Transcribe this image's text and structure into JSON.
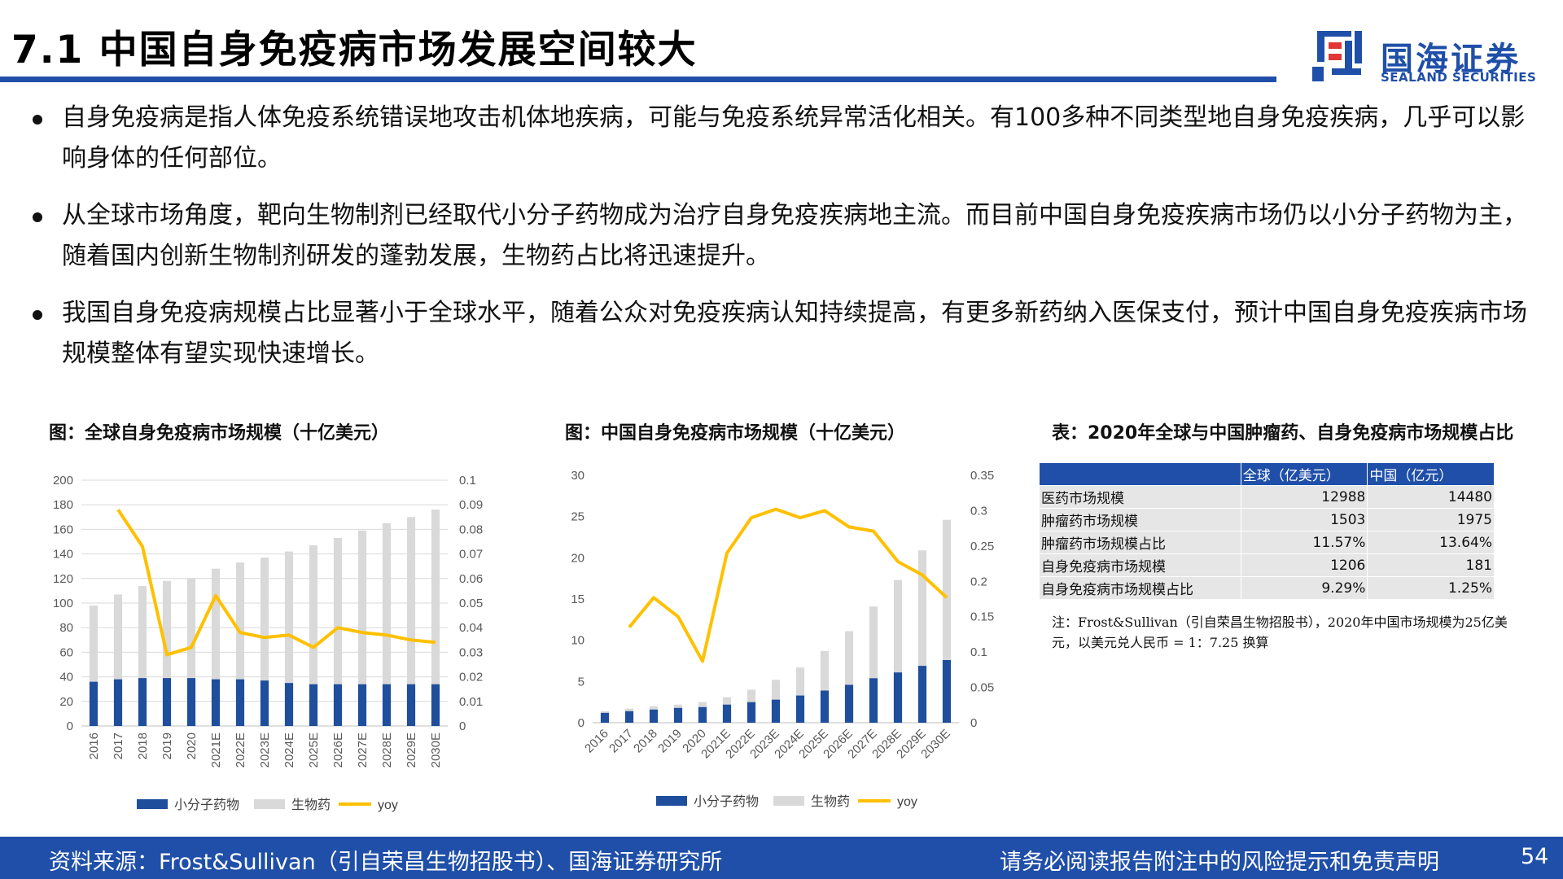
{
  "header": {
    "title": "7.1 中国自身免疫病市场发展空间较大",
    "logo_cn": "国海证券",
    "logo_en": "SEALAND SECURITIES"
  },
  "bullets": [
    "自身免疫病是指人体免疫系统错误地攻击机体地疾病，可能与免疫系统异常活化相关。有100多种不同类型地自身免疫疾病，几乎可以影响身体的任何部位。",
    "从全球市场角度，靶向生物制剂已经取代小分子药物成为治疗自身免疫疾病地主流。而目前中国自身免疫疾病市场仍以小分子药物为主，随着国内创新生物制剂研发的蓬勃发展，生物药占比将迅速提升。",
    "我国自身免疫病规模占比显著小于全球水平，随着公众对免疫疾病认知持续提高，有更多新药纳入医保支付，预计中国自身免疫疾病市场规模整体有望实现快速增长。"
  ],
  "colors": {
    "brand": "#1f4fa8",
    "small_molecule": "#1f4e9c",
    "biologic": "#d9d9d9",
    "yoy": "#ffc000"
  },
  "chart_data": [
    {
      "type": "bar",
      "stacked": true,
      "title": "图：全球自身免疫病市场规模（十亿美元）",
      "categories": [
        "2016",
        "2017",
        "2018",
        "2019",
        "2020",
        "2021E",
        "2022E",
        "2023E",
        "2024E",
        "2025E",
        "2026E",
        "2027E",
        "2028E",
        "2029E",
        "2030E"
      ],
      "series": [
        {
          "name": "小分子药物",
          "axis": "left",
          "values": [
            36,
            38,
            39,
            39,
            39,
            38,
            38,
            37,
            35,
            34,
            34,
            34,
            34,
            34,
            34
          ]
        },
        {
          "name": "生物药",
          "axis": "left",
          "values": [
            62,
            69,
            75,
            79,
            81,
            90,
            95,
            100,
            107,
            113,
            119,
            125,
            131,
            136,
            142
          ]
        },
        {
          "name": "yoy",
          "type": "line",
          "axis": "right",
          "values": [
            null,
            0.088,
            0.073,
            0.029,
            0.032,
            0.053,
            0.038,
            0.036,
            0.037,
            0.032,
            0.04,
            0.038,
            0.037,
            0.035,
            0.034
          ]
        }
      ],
      "ylim": [
        0,
        200
      ],
      "yticks": [
        0,
        20,
        40,
        60,
        80,
        100,
        120,
        140,
        160,
        180,
        200
      ],
      "y2lim": [
        0,
        0.1
      ],
      "y2ticks": [
        "0",
        "0.01",
        "0.02",
        "0.03",
        "0.04",
        "0.05",
        "0.06",
        "0.07",
        "0.08",
        "0.09",
        "0.1"
      ],
      "legend": [
        "小分子药物",
        "生物药",
        "yoy"
      ],
      "legend_position": "bottom",
      "grid": true
    },
    {
      "type": "bar",
      "stacked": true,
      "title": "图：中国自身免疫病市场规模（十亿美元）",
      "categories": [
        "2016",
        "2017",
        "2018",
        "2019",
        "2020",
        "2021E",
        "2022E",
        "2023E",
        "2024E",
        "2025E",
        "2026E",
        "2027E",
        "2028E",
        "2029E",
        "2030E"
      ],
      "series": [
        {
          "name": "小分子药物",
          "axis": "left",
          "values": [
            1.2,
            1.4,
            1.6,
            1.8,
            1.9,
            2.2,
            2.5,
            2.8,
            3.3,
            3.9,
            4.6,
            5.4,
            6.1,
            6.9,
            7.6
          ]
        },
        {
          "name": "生物药",
          "axis": "left",
          "values": [
            0.2,
            0.3,
            0.4,
            0.4,
            0.6,
            0.9,
            1.5,
            2.4,
            3.4,
            4.8,
            6.5,
            8.7,
            11.2,
            14.0,
            17.0
          ]
        },
        {
          "name": "yoy",
          "type": "line",
          "axis": "right",
          "values": [
            null,
            0.135,
            0.177,
            0.15,
            0.087,
            0.24,
            0.29,
            0.302,
            0.29,
            0.3,
            0.277,
            0.271,
            0.228,
            0.209,
            0.177
          ]
        }
      ],
      "ylim": [
        0,
        30
      ],
      "yticks": [
        0,
        5,
        10,
        15,
        20,
        25,
        30
      ],
      "y2lim": [
        0,
        0.35
      ],
      "y2ticks": [
        "0",
        "0.05",
        "0.1",
        "0.15",
        "0.2",
        "0.25",
        "0.3",
        "0.35"
      ],
      "legend": [
        "小分子药物",
        "生物药",
        "yoy"
      ],
      "legend_position": "bottom",
      "grid": false
    },
    {
      "type": "table",
      "title": "表：2020年全球与中国肿瘤药、自身免疫病市场规模占比",
      "columns": [
        "",
        "全球（亿美元）",
        "中国（亿元）"
      ],
      "rows": [
        [
          "医药市场规模",
          "12988",
          "14480"
        ],
        [
          "肿瘤药市场规模",
          "1503",
          "1975"
        ],
        [
          "肿瘤药市场规模占比",
          "11.57%",
          "13.64%"
        ],
        [
          "自身免疫病市场规模",
          "1206",
          "181"
        ],
        [
          "自身免疫病市场规模占比",
          "9.29%",
          "1.25%"
        ]
      ],
      "note": "注：Frost&Sullivan（引自荣昌生物招股书），2020年中国市场规模为25亿美元，以美元兑人民币 = 1：7.25 换算"
    }
  ],
  "footer": {
    "source": "资料来源：Frost&Sullivan（引自荣昌生物招股书）、国海证券研究所",
    "disclaimer": "请务必阅读报告附注中的风险提示和免责声明",
    "page": "54"
  }
}
